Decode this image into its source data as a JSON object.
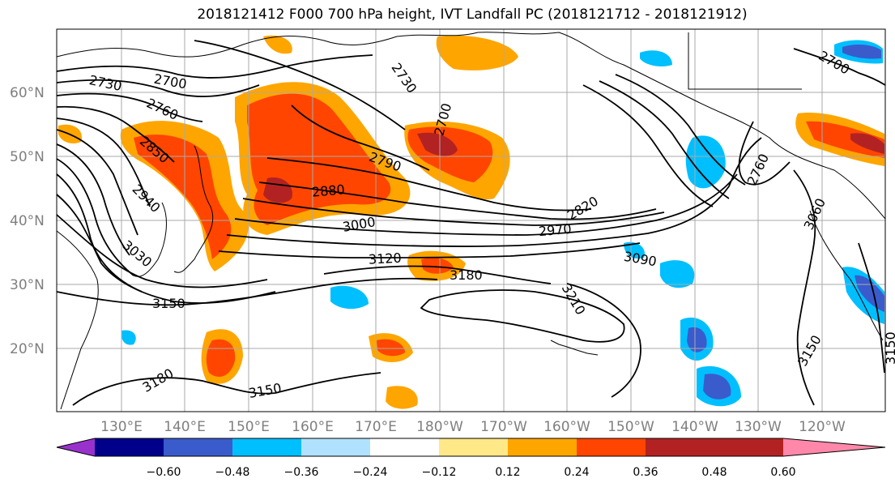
{
  "title": "2018121412 F000 700 hPa height, IVT Landfall PC (2018121712 - 2018121912)",
  "lat_labels": [
    "60°N",
    "50°N",
    "40°N",
    "30°N",
    "20°N"
  ],
  "lon_labels": [
    "130°E",
    "140°E",
    "150°E",
    "160°E",
    "170°E",
    "180°W",
    "170°W",
    "160°W",
    "150°W",
    "140°W",
    "130°W",
    "120°W"
  ],
  "contour_labels": [
    "2700",
    "2730",
    "2760",
    "2850",
    "2940",
    "3030",
    "2730",
    "2700",
    "2790",
    "2880",
    "3000",
    "3120",
    "3150",
    "3180",
    "3150",
    "3180",
    "3210",
    "2820",
    "2970",
    "3090",
    "2760",
    "3060",
    "2700",
    "3150",
    "3150"
  ],
  "colorbar": {
    "colors": [
      "#9932cc",
      "#00008b",
      "#3a5bcc",
      "#00bfff",
      "#b0e2ff",
      "#ffffff",
      "#ffe888",
      "#ffa500",
      "#ff4500",
      "#b22222",
      "#ff88aa"
    ],
    "ticks": [
      "−0.60",
      "−0.48",
      "−0.36",
      "−0.24",
      "−0.12",
      "0.12",
      "0.24",
      "0.36",
      "0.48",
      "0.60"
    ]
  }
}
